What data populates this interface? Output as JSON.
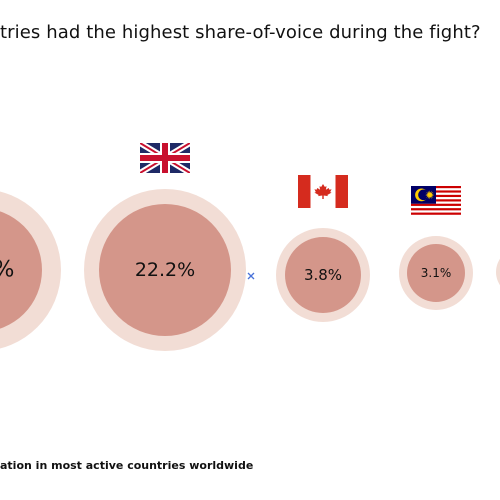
{
  "title": "tries had the highest share-of-voice during the fight?",
  "caption": "ation in most active countries worldwide",
  "chart_data": {
    "type": "bubble",
    "title": "tries had the highest share-of-voice during the fight?",
    "unit": "%",
    "categories": [
      "",
      "United Kingdom",
      "Canada",
      "Malaysia"
    ],
    "values": [
      null,
      22.2,
      3.8,
      3.1
    ],
    "value_labels": [
      "%",
      "22.2%",
      "3.8%",
      "3.1%"
    ],
    "flags": [
      "",
      "uk-flag-icon",
      "canada-flag-icon",
      "malaysia-flag-icon"
    ]
  },
  "colors": {
    "outer_ring": "#f2ddd5",
    "inner_circle": "#d4968a",
    "text": "#111111",
    "marker": "#4a73d9"
  }
}
